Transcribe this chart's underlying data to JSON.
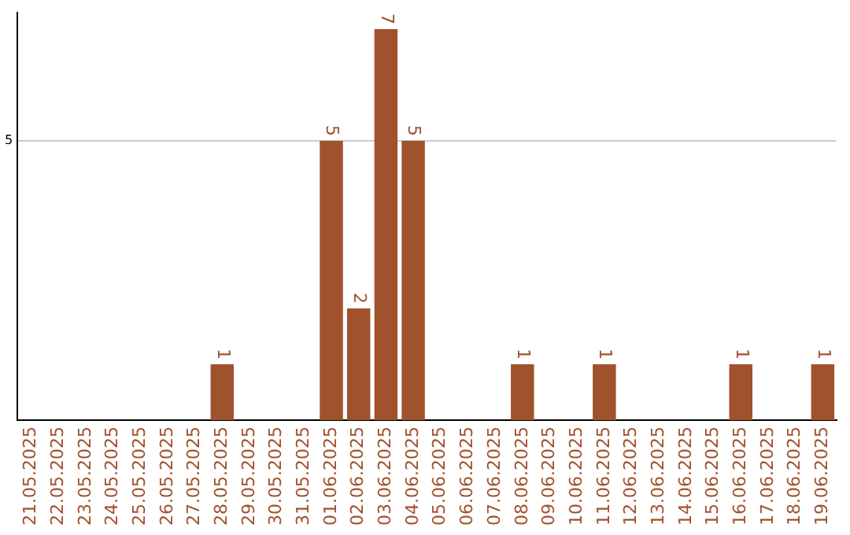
{
  "chart_data": {
    "type": "bar",
    "categories": [
      "21.05.2025",
      "22.05.2025",
      "23.05.2025",
      "24.05.2025",
      "25.05.2025",
      "26.05.2025",
      "27.05.2025",
      "28.05.2025",
      "29.05.2025",
      "30.05.2025",
      "31.05.2025",
      "01.06.2025",
      "02.06.2025",
      "03.06.2025",
      "04.06.2025",
      "05.06.2025",
      "06.06.2025",
      "07.06.2025",
      "08.06.2025",
      "09.06.2025",
      "10.06.2025",
      "11.06.2025",
      "12.06.2025",
      "13.06.2025",
      "14.06.2025",
      "15.06.2025",
      "16.06.2025",
      "17.06.2025",
      "18.06.2025",
      "19.06.2025"
    ],
    "values": [
      0,
      0,
      0,
      0,
      0,
      0,
      0,
      1,
      0,
      0,
      0,
      5,
      2,
      7,
      5,
      0,
      0,
      0,
      1,
      0,
      0,
      1,
      0,
      0,
      0,
      0,
      1,
      0,
      0,
      1
    ],
    "color": "#a0522d",
    "value_labels": [
      null,
      null,
      null,
      null,
      null,
      null,
      null,
      "1",
      null,
      null,
      null,
      "5",
      "2",
      "7",
      "5",
      null,
      null,
      null,
      "1",
      null,
      null,
      "1",
      null,
      null,
      null,
      null,
      "1",
      null,
      null,
      "1"
    ],
    "ylim": [
      0,
      7.3
    ],
    "yticks": [
      5
    ],
    "grid": "y"
  }
}
